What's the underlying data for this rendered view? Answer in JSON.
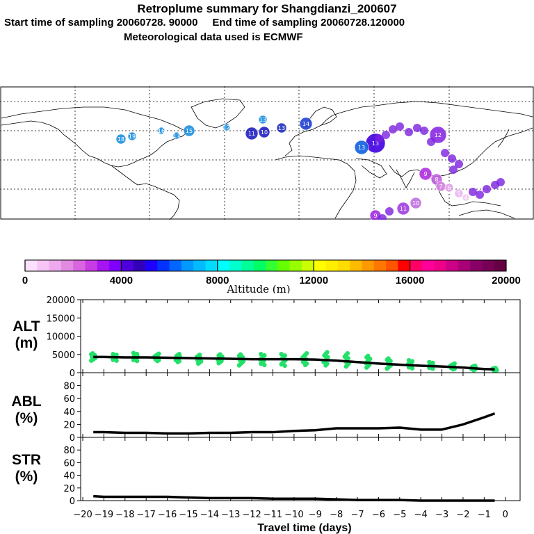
{
  "title": "Retroplume summary for Shangdianzi_200607",
  "subtitle_start": "Start time of sampling 20060728. 90000",
  "subtitle_end": "End time of sampling 20060728.120000",
  "subtitle_met": "Meteorological data used is ECMWF",
  "colorbar": {
    "label": "Altitude (m)",
    "ticks": [
      "0",
      "4000",
      "8000",
      "12000",
      "16000",
      "20000"
    ],
    "tick_values": [
      0,
      4000,
      8000,
      12000,
      16000,
      20000
    ],
    "colors": [
      "#fde0fd",
      "#f6c4f6",
      "#eeaaee",
      "#e28ae2",
      "#d966e0",
      "#c83ce6",
      "#a614f0",
      "#8000ff",
      "#4d00dc",
      "#3200b8",
      "#1e00ff",
      "#0033ff",
      "#0066ff",
      "#0099ff",
      "#00bbff",
      "#00ddff",
      "#00ffff",
      "#00ffcc",
      "#00ff99",
      "#00ff66",
      "#33ff33",
      "#66ff00",
      "#99ff00",
      "#ccff00",
      "#ffff00",
      "#ffee00",
      "#ffdd00",
      "#ffbb00",
      "#ff9900",
      "#ff7700",
      "#ff5500",
      "#ff0000",
      "#ff0066",
      "#ff0099",
      "#ee0088",
      "#cc0088",
      "#aa0077",
      "#880066",
      "#770055",
      "#660044"
    ]
  },
  "map_clusters": [
    {
      "label": "18",
      "color": "#1e90e0"
    },
    {
      "label": "19",
      "color": "#1e90e0"
    },
    {
      "label": "16",
      "color": "#1e90e0"
    },
    {
      "label": "17",
      "color": "#1e90e0"
    },
    {
      "label": "15",
      "color": "#1e90e0"
    },
    {
      "label": "12",
      "color": "#1e90e0"
    },
    {
      "label": "11",
      "color": "#2020c0"
    },
    {
      "label": "10",
      "color": "#2020c0"
    },
    {
      "label": "13",
      "color": "#1e90e0"
    },
    {
      "label": "13",
      "color": "#2030c0"
    },
    {
      "label": "14",
      "color": "#2040d0"
    },
    {
      "label": "13",
      "color": "#4000e0"
    },
    {
      "label": "12",
      "color": "#8a2be2"
    },
    {
      "label": "13",
      "color": "#1060e0"
    },
    {
      "label": "9",
      "color": "#b030e0"
    },
    {
      "label": "8",
      "color": "#c060e0"
    },
    {
      "label": "7",
      "color": "#d080e0"
    },
    {
      "label": "6",
      "color": "#e0a0e8"
    },
    {
      "label": "5",
      "color": "#e8b8f0"
    },
    {
      "label": "4",
      "color": "#f0c8f0"
    },
    {
      "label": "11",
      "color": "#a040e0"
    },
    {
      "label": "10",
      "color": "#c070e0"
    },
    {
      "label": "9",
      "color": "#a030e0"
    }
  ],
  "chart_data": [
    {
      "type": "line",
      "panel": "ALT",
      "ylabel": "ALT\n(m)",
      "ylabel_line1": "ALT",
      "ylabel_line2": "(m)",
      "ylim": [
        0,
        20000
      ],
      "yticks": [
        "20000",
        "15000",
        "10000",
        "5000",
        "0"
      ],
      "ytick_values": [
        20000,
        15000,
        10000,
        5000,
        0
      ],
      "x": [
        -19.5,
        -19,
        -18,
        -17,
        -16,
        -15,
        -14,
        -13,
        -12,
        -11,
        -10,
        -9,
        -8,
        -7,
        -6,
        -5,
        -4,
        -3,
        -2,
        -1,
        -0.5
      ],
      "series": [
        {
          "name": "mean altitude",
          "values": [
            4300,
            4300,
            4200,
            4200,
            4100,
            4000,
            3900,
            3800,
            3700,
            3700,
            3700,
            3600,
            3300,
            2900,
            2500,
            2200,
            1900,
            1700,
            1400,
            1000,
            900
          ]
        }
      ],
      "scatter": {
        "color": "#22e06a",
        "x": [
          -19.5,
          -18.5,
          -17.5,
          -16.5,
          -15.5,
          -14.5,
          -13.5,
          -12.5,
          -11.5,
          -10.5,
          -9.5,
          -8.5,
          -7.5,
          -6.5,
          -5.5,
          -4.5,
          -3.5,
          -2.5,
          -1.5,
          -0.5
        ],
        "center": [
          4300,
          4200,
          4300,
          4200,
          4000,
          3700,
          3800,
          3500,
          3600,
          3500,
          3700,
          3800,
          3500,
          3000,
          2500,
          2300,
          2000,
          1700,
          1300,
          900
        ],
        "spread": [
          1000,
          900,
          1100,
          1000,
          1100,
          1200,
          1200,
          1500,
          1500,
          1600,
          1600,
          1800,
          1800,
          1600,
          1400,
          1100,
          900,
          800,
          600,
          400
        ]
      }
    },
    {
      "type": "line",
      "panel": "ABL",
      "ylabel_line1": "ABL",
      "ylabel_line2": "(%)",
      "ylim": [
        0,
        100
      ],
      "yticks": [
        "80",
        "60",
        "40",
        "20",
        "0"
      ],
      "ytick_values": [
        80,
        60,
        40,
        20,
        0
      ],
      "x": [
        -19.5,
        -19,
        -18,
        -17,
        -16,
        -15,
        -14,
        -13,
        -12,
        -11,
        -10,
        -9,
        -8,
        -7,
        -6,
        -5,
        -4,
        -3,
        -2,
        -1,
        -0.5
      ],
      "series": [
        {
          "name": "ABL fraction",
          "values": [
            8,
            8,
            7,
            7,
            6,
            6,
            7,
            7,
            8,
            8,
            10,
            11,
            14,
            14,
            14,
            15,
            12,
            12,
            20,
            31,
            37
          ]
        }
      ]
    },
    {
      "type": "line",
      "panel": "STR",
      "ylabel_line1": "STR",
      "ylabel_line2": "(%)",
      "ylim": [
        0,
        100
      ],
      "yticks": [
        "80",
        "60",
        "40",
        "20",
        "0"
      ],
      "ytick_values": [
        80,
        60,
        40,
        20,
        0
      ],
      "x": [
        -19.5,
        -19,
        -18,
        -17,
        -16,
        -15,
        -14,
        -13,
        -12,
        -11,
        -10,
        -9,
        -8,
        -7,
        -6,
        -5,
        -4,
        -3,
        -2,
        -1,
        -0.5
      ],
      "series": [
        {
          "name": "STR fraction",
          "values": [
            7,
            6,
            6,
            6,
            6,
            5,
            4,
            4,
            4,
            3,
            3,
            3,
            2,
            1,
            1,
            1,
            0,
            0,
            0,
            0,
            0
          ]
        }
      ]
    }
  ],
  "xaxis": {
    "label": "Travel time (days)",
    "ticks": [
      "−20",
      "−19",
      "−18",
      "−17",
      "−16",
      "−15",
      "−14",
      "−13",
      "−12",
      "−11",
      "−10",
      "−9",
      "−8",
      "−7",
      "−6",
      "−5",
      "−4",
      "−3",
      "−2",
      "−1",
      "0"
    ],
    "tick_values": [
      -20,
      -19,
      -18,
      -17,
      -16,
      -15,
      -14,
      -13,
      -12,
      -11,
      -10,
      -9,
      -8,
      -7,
      -6,
      -5,
      -4,
      -3,
      -2,
      -1,
      0
    ],
    "range": [
      -20.1,
      0.7
    ]
  }
}
